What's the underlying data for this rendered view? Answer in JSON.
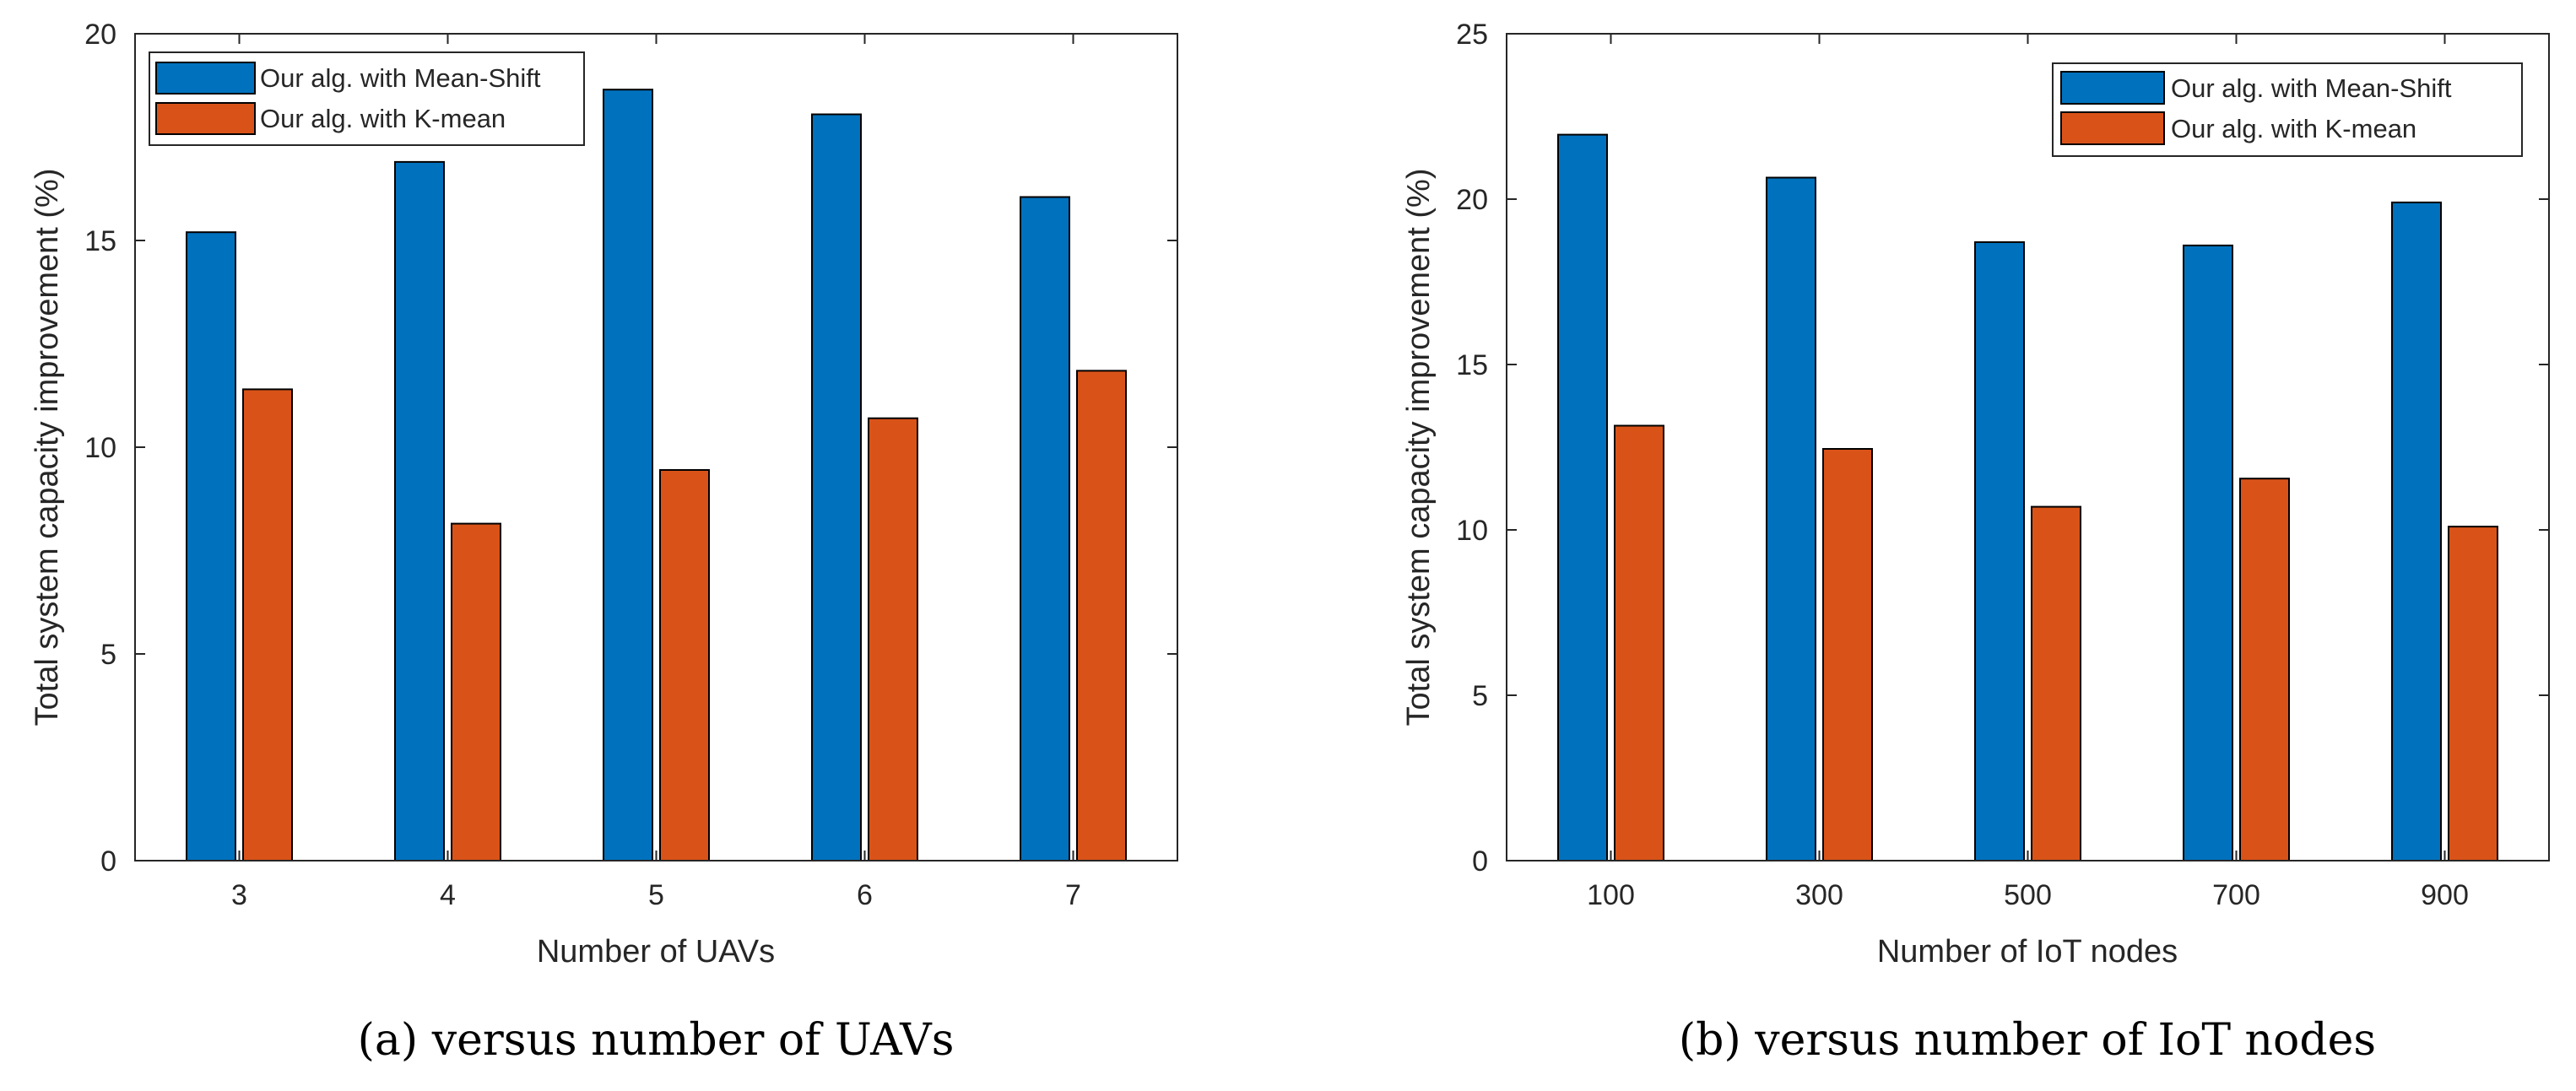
{
  "colors": {
    "mean_shift": "#0072BD",
    "k_mean": "#D95319",
    "axis": "#262626"
  },
  "chart_data": [
    {
      "type": "bar",
      "caption": "(a)  versus number of UAVs",
      "xlabel": "Number of UAVs",
      "ylabel": "Total system capacity improvement (%)",
      "categories": [
        "3",
        "4",
        "5",
        "6",
        "7"
      ],
      "ylim": [
        0,
        20
      ],
      "yticks": [
        0,
        5,
        10,
        15,
        20
      ],
      "legend_position": "top-left",
      "grid": false,
      "series": [
        {
          "name": "Our alg. with Mean-Shift",
          "values": [
            15.2,
            16.9,
            18.65,
            18.05,
            16.05
          ]
        },
        {
          "name": "Our alg. with K-mean",
          "values": [
            11.4,
            8.15,
            9.45,
            10.7,
            11.85
          ]
        }
      ]
    },
    {
      "type": "bar",
      "caption": "(b)  versus number of IoT nodes",
      "xlabel": "Number of IoT nodes",
      "ylabel": "Total system capacity improvement (%)",
      "categories": [
        "100",
        "300",
        "500",
        "700",
        "900"
      ],
      "ylim": [
        0,
        25
      ],
      "yticks": [
        0,
        5,
        10,
        15,
        20,
        25
      ],
      "legend_position": "top-right",
      "grid": false,
      "series": [
        {
          "name": "Our alg. with Mean-Shift",
          "values": [
            21.95,
            20.65,
            18.7,
            18.6,
            19.9
          ]
        },
        {
          "name": "Our alg. with K-mean",
          "values": [
            13.15,
            12.45,
            10.7,
            11.55,
            10.1
          ]
        }
      ]
    }
  ]
}
